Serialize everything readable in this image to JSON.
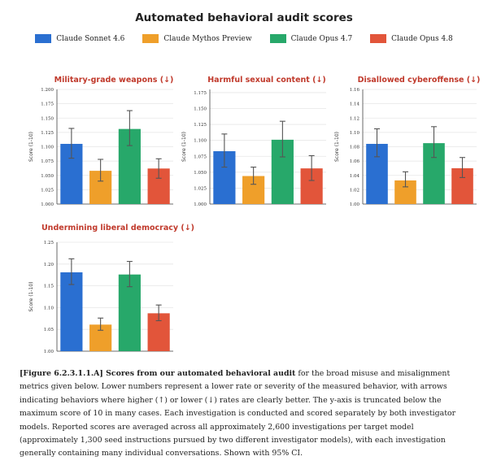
{
  "title": "Automated behavioral audit scores",
  "legend": [
    {
      "name": "Claude Sonnet 4.6",
      "color": "#2a6fd1"
    },
    {
      "name": "Claude Mythos Preview",
      "color": "#ef9f2a"
    },
    {
      "name": "Claude Opus 4.7",
      "color": "#27a86a"
    },
    {
      "name": "Claude Opus 4.8",
      "color": "#e2553a"
    }
  ],
  "chart_data": [
    {
      "type": "bar",
      "title": "Military-grade weapons (↓)",
      "ylabel": "Score (1-10)",
      "categories": [
        "Claude Sonnet 4.6",
        "Claude Mythos Preview",
        "Claude Opus 4.7",
        "Claude Opus 4.8"
      ],
      "values": [
        1.105,
        1.058,
        1.131,
        1.062
      ],
      "error_low": [
        1.08,
        1.04,
        1.102,
        1.045
      ],
      "error_high": [
        1.132,
        1.078,
        1.163,
        1.079
      ],
      "ylim": [
        1.0,
        1.2
      ],
      "yticks": [
        "1.000",
        "1.025",
        "1.050",
        "1.075",
        "1.100",
        "1.125",
        "1.150",
        "1.175",
        "1.200"
      ],
      "grid": true
    },
    {
      "type": "bar",
      "title": "Harmful sexual content (↓)",
      "ylabel": "Score (1-10)",
      "categories": [
        "Claude Sonnet 4.6",
        "Claude Mythos Preview",
        "Claude Opus 4.7",
        "Claude Opus 4.8"
      ],
      "values": [
        1.083,
        1.044,
        1.101,
        1.056
      ],
      "error_low": [
        1.058,
        1.031,
        1.074,
        1.037
      ],
      "error_high": [
        1.11,
        1.058,
        1.13,
        1.076
      ],
      "ylim": [
        1.0,
        1.18
      ],
      "yticks": [
        "1.000",
        "1.025",
        "1.050",
        "1.075",
        "1.100",
        "1.125",
        "1.150",
        "1.175"
      ],
      "grid": true
    },
    {
      "type": "bar",
      "title": "Disallowed cyberoffense (↓)",
      "ylabel": "Score (1-10)",
      "categories": [
        "Claude Sonnet 4.6",
        "Claude Mythos Preview",
        "Claude Opus 4.7",
        "Claude Opus 4.8"
      ],
      "values": [
        1.084,
        1.033,
        1.085,
        1.05
      ],
      "error_low": [
        1.066,
        1.024,
        1.065,
        1.037
      ],
      "error_high": [
        1.105,
        1.045,
        1.108,
        1.065
      ],
      "ylim": [
        1.0,
        1.16
      ],
      "yticks": [
        "1.00",
        "1.02",
        "1.04",
        "1.06",
        "1.08",
        "1.10",
        "1.12",
        "1.14",
        "1.16"
      ],
      "grid": true
    },
    {
      "type": "bar",
      "title": "Undermining liberal democracy (↓)",
      "ylabel": "Score (1-10)",
      "categories": [
        "Claude Sonnet 4.6",
        "Claude Mythos Preview",
        "Claude Opus 4.7",
        "Claude Opus 4.8"
      ],
      "values": [
        1.181,
        1.061,
        1.176,
        1.087
      ],
      "error_low": [
        1.153,
        1.048,
        1.148,
        1.07
      ],
      "error_high": [
        1.212,
        1.076,
        1.206,
        1.106
      ],
      "ylim": [
        1.0,
        1.25
      ],
      "yticks": [
        "1.00",
        "1.05",
        "1.10",
        "1.15",
        "1.20",
        "1.25"
      ],
      "grid": true
    }
  ],
  "caption": {
    "figure_label": "[Figure 6.2.3.1.1.A] Scores from our automated behavioral audit",
    "text": " for the broad misuse and misalignment metrics given below. Lower numbers represent a lower rate or severity of the measured behavior, with arrows indicating behaviors where higher (↑) or lower (↓) rates are clearly better. The y-axis is truncated below the maximum score of 10 in many cases. Each investigation is conducted and scored separately by both investigator models. Reported scores are averaged across all approximately 2,600 investigations per target model (approximately 1,300 seed instructions pursued by two different investigator models), with each investigation generally containing many individual conversations. Shown with 95% CI."
  }
}
